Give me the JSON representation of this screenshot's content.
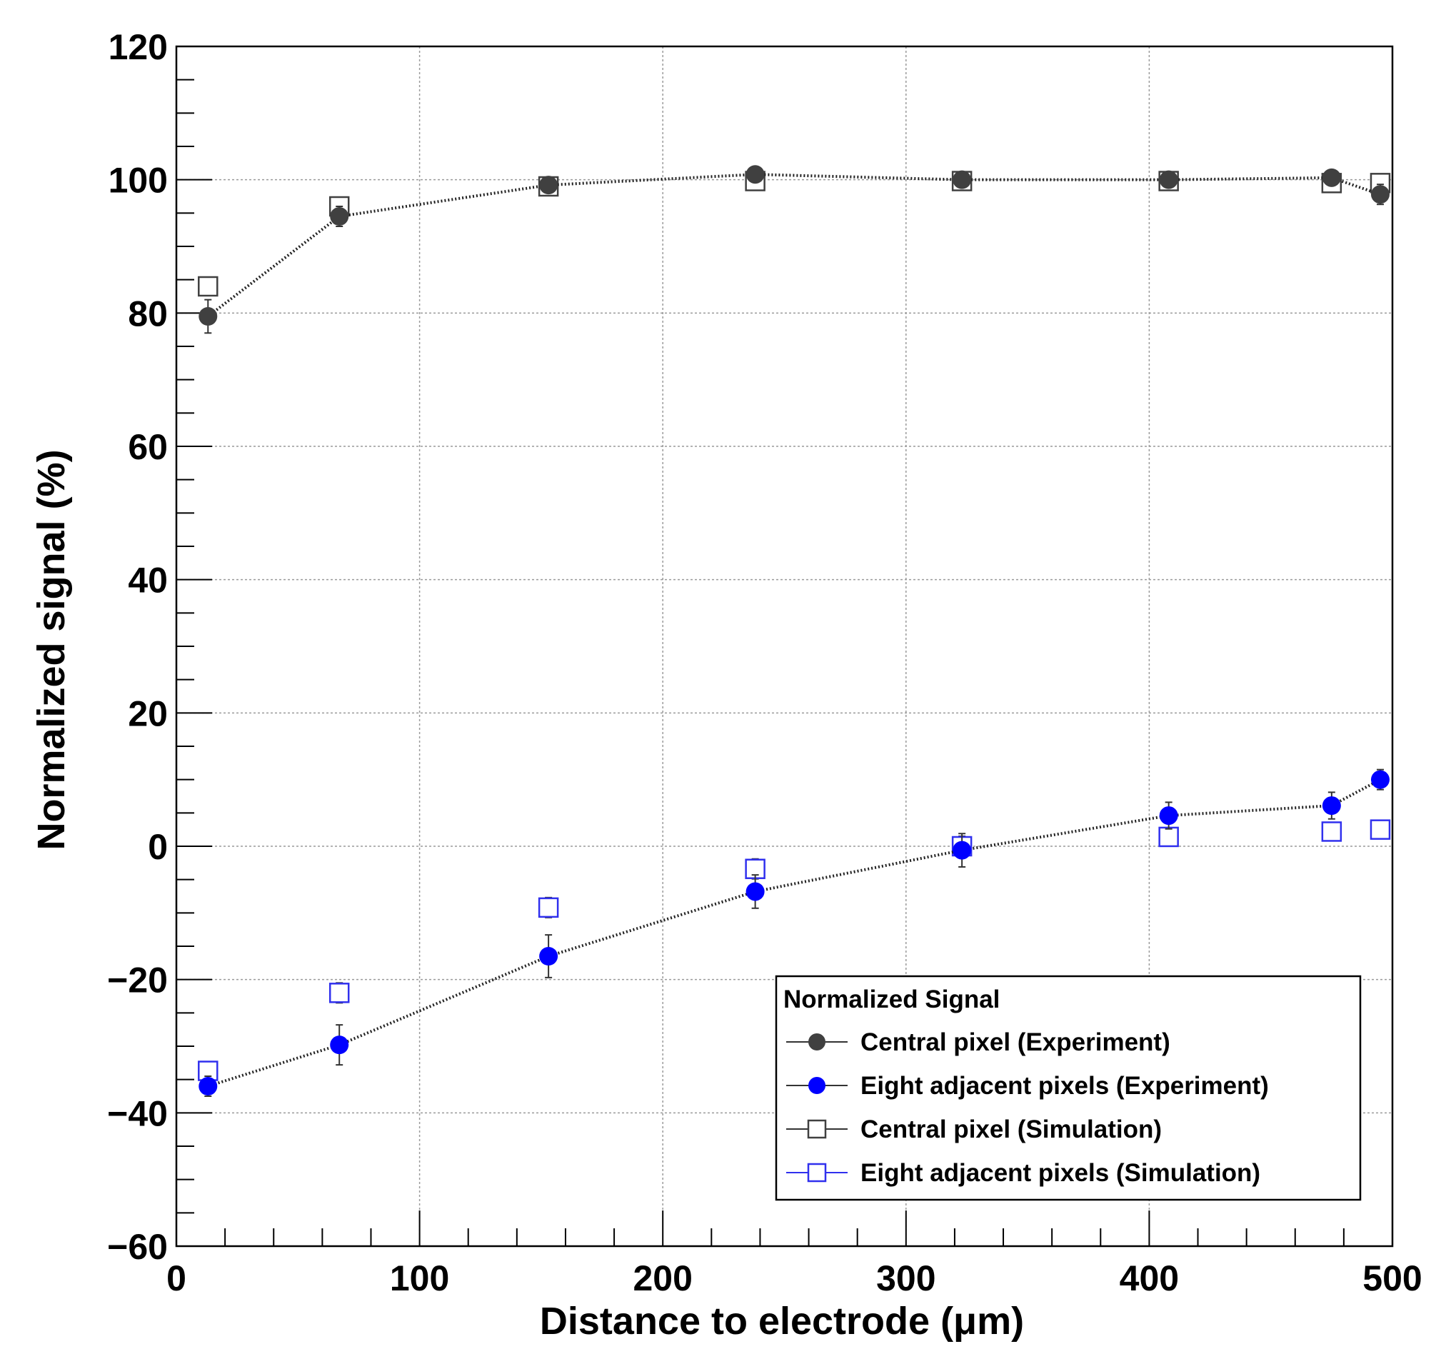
{
  "chart_data": {
    "type": "scatter",
    "title": "",
    "xlabel": "Distance to electrode (μm)",
    "ylabel": "Normalized signal (%)",
    "xlim": [
      0,
      500
    ],
    "ylim": [
      -60,
      120
    ],
    "x_ticks": [
      0,
      100,
      200,
      300,
      400,
      500
    ],
    "y_ticks": [
      -60,
      -40,
      -20,
      0,
      20,
      40,
      60,
      80,
      100,
      120
    ],
    "x_tick_labels": [
      "0",
      "100",
      "200",
      "300",
      "400",
      "500"
    ],
    "y_tick_labels": [
      "−60",
      "−40",
      "−20",
      "0",
      "20",
      "40",
      "60",
      "80",
      "100",
      "120"
    ],
    "grid": true,
    "legend": {
      "title": "Normalized Signal",
      "placement": "bottom-right"
    },
    "series": [
      {
        "name": "Central pixel (Experiment)",
        "marker": "filled-circle",
        "color": "#404040",
        "connected": true,
        "x": [
          13,
          67,
          153,
          238,
          323,
          408,
          475,
          495
        ],
        "y": [
          79.5,
          94.5,
          99.2,
          100.8,
          100.0,
          100.0,
          100.3,
          97.8
        ],
        "err": [
          2.5,
          1.5,
          1.0,
          0.8,
          0.8,
          0.8,
          0.8,
          1.5
        ]
      },
      {
        "name": "Eight adjacent pixels (Experiment)",
        "marker": "filled-circle",
        "color": "#0000ff",
        "connected": true,
        "x": [
          13,
          67,
          153,
          238,
          323,
          408,
          475,
          495
        ],
        "y": [
          -36.0,
          -29.8,
          -16.5,
          -6.8,
          -0.6,
          4.6,
          6.1,
          10.0
        ],
        "err": [
          1.5,
          3.0,
          3.2,
          2.5,
          2.5,
          2.0,
          2.0,
          1.5
        ]
      },
      {
        "name": "Central pixel (Simulation)",
        "marker": "open-square",
        "color": "#404040",
        "connected": false,
        "x": [
          13,
          67,
          153,
          238,
          323,
          408,
          475,
          495
        ],
        "y": [
          84.0,
          96.0,
          99.0,
          99.8,
          99.8,
          99.8,
          99.5,
          99.5
        ],
        "err": [
          0,
          0,
          0,
          0,
          0,
          0,
          0,
          0
        ]
      },
      {
        "name": "Eight adjacent pixels (Simulation)",
        "marker": "open-square",
        "color": "#3030ee",
        "connected": false,
        "x": [
          13,
          67,
          153,
          238,
          323,
          408,
          475,
          495
        ],
        "y": [
          -33.7,
          -22.0,
          -9.2,
          -3.4,
          0.0,
          1.4,
          2.2,
          2.5
        ],
        "err": [
          0.8,
          1.5,
          1.5,
          1.5,
          1.5,
          1.0,
          1.0,
          1.0
        ]
      }
    ]
  }
}
